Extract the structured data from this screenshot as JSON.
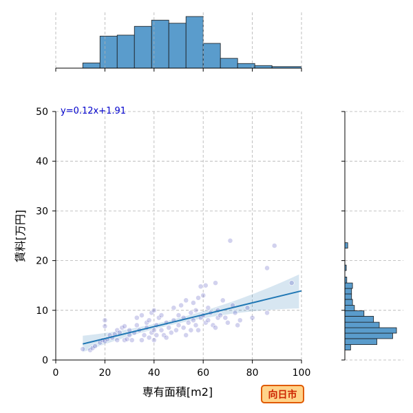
{
  "chart_data": {
    "type": "scatter",
    "title": "",
    "xlabel": "専有面積[m2]",
    "ylabel": "賃料[万円]",
    "xlim": [
      0,
      100
    ],
    "ylim": [
      0,
      50
    ],
    "xticks": [
      0,
      20,
      40,
      60,
      80,
      100
    ],
    "yticks": [
      0,
      10,
      20,
      30,
      40,
      50
    ],
    "grid": true,
    "regression": {
      "label": "y=0.12x+1.91",
      "slope": 0.12,
      "intercept": 1.91,
      "x_range": [
        11,
        100
      ],
      "color": "#1f77b4"
    },
    "point_color": "#3030b0",
    "points": [
      [
        11,
        2.2
      ],
      [
        14,
        2.0
      ],
      [
        15,
        2.4
      ],
      [
        16,
        2.8
      ],
      [
        18,
        3.5
      ],
      [
        19,
        4.0
      ],
      [
        20,
        3.8
      ],
      [
        20,
        8.0
      ],
      [
        20,
        6.8
      ],
      [
        21,
        4.2
      ],
      [
        22,
        5.0
      ],
      [
        23,
        4.5
      ],
      [
        24,
        5.2
      ],
      [
        25,
        4.0
      ],
      [
        25,
        6.0
      ],
      [
        26,
        5.5
      ],
      [
        27,
        6.5
      ],
      [
        28,
        4.0
      ],
      [
        28,
        6.8
      ],
      [
        29,
        4.2
      ],
      [
        30,
        5.0
      ],
      [
        30,
        6.0
      ],
      [
        31,
        4.0
      ],
      [
        32,
        5.5
      ],
      [
        33,
        7.0
      ],
      [
        33,
        8.5
      ],
      [
        34,
        6.0
      ],
      [
        35,
        4.0
      ],
      [
        35,
        9.0
      ],
      [
        36,
        5.0
      ],
      [
        37,
        6.5
      ],
      [
        37,
        7.5
      ],
      [
        38,
        4.5
      ],
      [
        38,
        8.0
      ],
      [
        39,
        5.5
      ],
      [
        39,
        9.5
      ],
      [
        40,
        4.0
      ],
      [
        40,
        6.0
      ],
      [
        40,
        10.0
      ],
      [
        41,
        5.0
      ],
      [
        41,
        7.0
      ],
      [
        42,
        8.5
      ],
      [
        43,
        6.0
      ],
      [
        43,
        9.0
      ],
      [
        44,
        5.0
      ],
      [
        45,
        4.5
      ],
      [
        45,
        7.5
      ],
      [
        46,
        6.5
      ],
      [
        47,
        5.5
      ],
      [
        48,
        8.0
      ],
      [
        48,
        10.5
      ],
      [
        49,
        6.0
      ],
      [
        50,
        7.0
      ],
      [
        50,
        9.0
      ],
      [
        51,
        11.0
      ],
      [
        52,
        6.5
      ],
      [
        52,
        8.5
      ],
      [
        53,
        5.0
      ],
      [
        53,
        12.0
      ],
      [
        54,
        7.5
      ],
      [
        55,
        9.5
      ],
      [
        55,
        6.0
      ],
      [
        56,
        8.0
      ],
      [
        56,
        11.5
      ],
      [
        57,
        7.0
      ],
      [
        57,
        10.0
      ],
      [
        58,
        6.0
      ],
      [
        58,
        12.5
      ],
      [
        59,
        8.5
      ],
      [
        59,
        14.8
      ],
      [
        60,
        9.0
      ],
      [
        60,
        13.0
      ],
      [
        61,
        7.5
      ],
      [
        61,
        15.0
      ],
      [
        62,
        10.5
      ],
      [
        62,
        8.0
      ],
      [
        63,
        9.5
      ],
      [
        64,
        7.0
      ],
      [
        65,
        15.5
      ],
      [
        65,
        6.5
      ],
      [
        66,
        10.0
      ],
      [
        66,
        8.5
      ],
      [
        67,
        9.0
      ],
      [
        68,
        12.0
      ],
      [
        69,
        8.5
      ],
      [
        70,
        7.5
      ],
      [
        71,
        24.0
      ],
      [
        72,
        11.0
      ],
      [
        73,
        9.5
      ],
      [
        74,
        7.0
      ],
      [
        75,
        8.0
      ],
      [
        78,
        10.5
      ],
      [
        80,
        8.5
      ],
      [
        86,
        18.5
      ],
      [
        86,
        9.5
      ],
      [
        89,
        23.0
      ],
      [
        96,
        15.5
      ]
    ],
    "x_hist": {
      "bin_edges": [
        0,
        5,
        10,
        15,
        20,
        25,
        30,
        35,
        40,
        45,
        50,
        55,
        60,
        65,
        70,
        75,
        80,
        85,
        90,
        95,
        100
      ],
      "relative_heights": [
        0,
        0,
        0,
        0.1,
        0.62,
        0.64,
        0.81,
        0.92,
        0.87,
        1.0,
        0.48,
        0.19,
        0.09,
        0.05,
        0.03,
        0.0,
        0,
        0,
        0,
        0
      ],
      "bars": [
        {
          "x0": 11,
          "x1": 18,
          "h": 0.1
        },
        {
          "x0": 18,
          "x1": 25,
          "h": 0.62
        },
        {
          "x0": 25,
          "x1": 32,
          "h": 0.64
        },
        {
          "x0": 32,
          "x1": 39,
          "h": 0.81
        },
        {
          "x0": 39,
          "x1": 46,
          "h": 0.93
        },
        {
          "x0": 46,
          "x1": 53,
          "h": 0.87
        },
        {
          "x0": 53,
          "x1": 60,
          "h": 1.0
        },
        {
          "x0": 60,
          "x1": 67,
          "h": 0.48
        },
        {
          "x0": 67,
          "x1": 74,
          "h": 0.19
        },
        {
          "x0": 74,
          "x1": 81,
          "h": 0.09
        },
        {
          "x0": 81,
          "x1": 88,
          "h": 0.05
        },
        {
          "x0": 88,
          "x1": 100,
          "h": 0.03
        }
      ]
    },
    "y_hist": {
      "bars": [
        {
          "y0": 2.0,
          "y1": 3.1,
          "w": 0.12
        },
        {
          "y0": 3.1,
          "y1": 4.3,
          "w": 0.67
        },
        {
          "y0": 4.3,
          "y1": 5.4,
          "w": 1.0
        },
        {
          "y0": 5.4,
          "y1": 6.5,
          "w": 1.08
        },
        {
          "y0": 6.5,
          "y1": 7.6,
          "w": 0.72
        },
        {
          "y0": 7.6,
          "y1": 8.8,
          "w": 0.6
        },
        {
          "y0": 8.8,
          "y1": 9.9,
          "w": 0.4
        },
        {
          "y0": 9.9,
          "y1": 11.0,
          "w": 0.2
        },
        {
          "y0": 11.0,
          "y1": 12.2,
          "w": 0.16
        },
        {
          "y0": 12.2,
          "y1": 13.3,
          "w": 0.14
        },
        {
          "y0": 13.3,
          "y1": 14.4,
          "w": 0.14
        },
        {
          "y0": 14.4,
          "y1": 15.5,
          "w": 0.16
        },
        {
          "y0": 15.5,
          "y1": 16.7,
          "w": 0.04
        },
        {
          "y0": 18.0,
          "y1": 19.1,
          "w": 0.03
        },
        {
          "y0": 22.5,
          "y1": 23.6,
          "w": 0.06
        }
      ]
    },
    "annotation_badge": "向日市",
    "badge_colors": {
      "fill": "#ffd38a",
      "stroke": "#e05a00",
      "text": "#cc2200"
    }
  }
}
